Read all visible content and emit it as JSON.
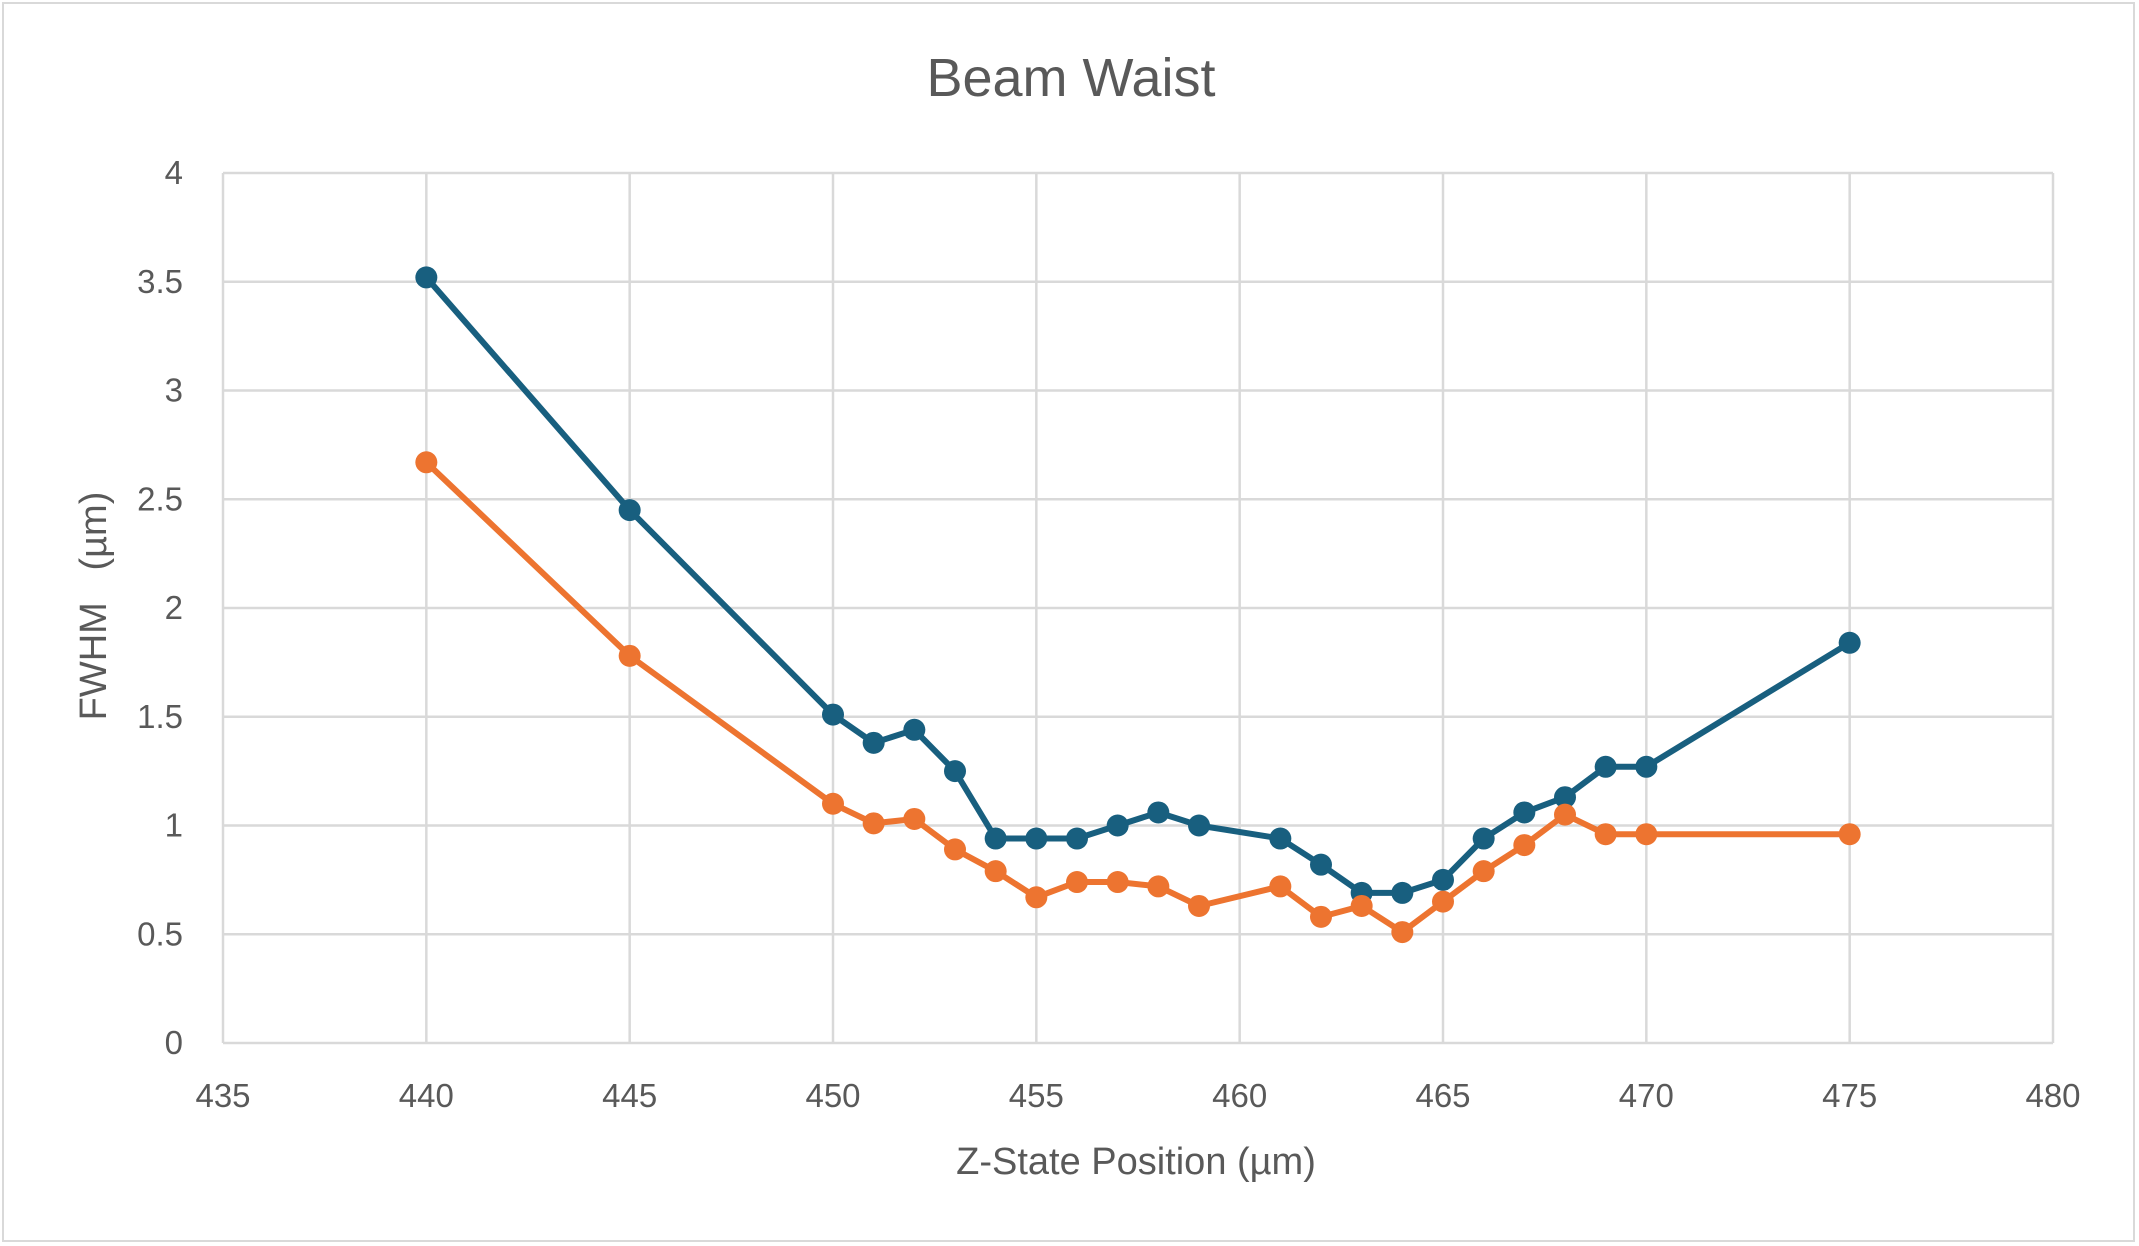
{
  "chart_data": {
    "type": "line",
    "title": "Beam Waist",
    "xlabel": "Z-State Position (µm)",
    "ylabel": "FWHM   (µm)",
    "xlim": [
      435,
      480
    ],
    "ylim": [
      0,
      4
    ],
    "x_ticks": [
      "435",
      "440",
      "445",
      "450",
      "455",
      "460",
      "465",
      "470",
      "475",
      "480"
    ],
    "y_ticks": [
      "0",
      "0.5",
      "1",
      "1.5",
      "2",
      "2.5",
      "3",
      "3.5",
      "4"
    ],
    "grid": true,
    "legend": "none",
    "marker": "circle",
    "series": [
      {
        "color": "#185f7f",
        "points": [
          [
            440,
            3.52
          ],
          [
            445,
            2.45
          ],
          [
            450,
            1.51
          ],
          [
            451,
            1.38
          ],
          [
            452,
            1.44
          ],
          [
            453,
            1.25
          ],
          [
            454,
            0.94
          ],
          [
            455,
            0.94
          ],
          [
            456,
            0.94
          ],
          [
            457,
            1.0
          ],
          [
            458,
            1.06
          ],
          [
            459,
            1.0
          ],
          [
            461,
            0.94
          ],
          [
            462,
            0.82
          ],
          [
            463,
            0.69
          ],
          [
            464,
            0.69
          ],
          [
            465,
            0.75
          ],
          [
            466,
            0.94
          ],
          [
            467,
            1.06
          ],
          [
            468,
            1.13
          ],
          [
            469,
            1.27
          ],
          [
            470,
            1.27
          ],
          [
            475,
            1.84
          ]
        ]
      },
      {
        "color": "#ed7430",
        "points": [
          [
            440,
            2.67
          ],
          [
            445,
            1.78
          ],
          [
            450,
            1.1
          ],
          [
            451,
            1.01
          ],
          [
            452,
            1.03
          ],
          [
            453,
            0.89
          ],
          [
            454,
            0.79
          ],
          [
            455,
            0.67
          ],
          [
            456,
            0.74
          ],
          [
            457,
            0.74
          ],
          [
            458,
            0.72
          ],
          [
            459,
            0.63
          ],
          [
            461,
            0.72
          ],
          [
            462,
            0.58
          ],
          [
            463,
            0.63
          ],
          [
            464,
            0.51
          ],
          [
            465,
            0.65
          ],
          [
            466,
            0.79
          ],
          [
            467,
            0.91
          ],
          [
            468,
            1.05
          ],
          [
            469,
            0.96
          ],
          [
            470,
            0.96
          ],
          [
            475,
            0.96
          ]
        ]
      }
    ]
  }
}
